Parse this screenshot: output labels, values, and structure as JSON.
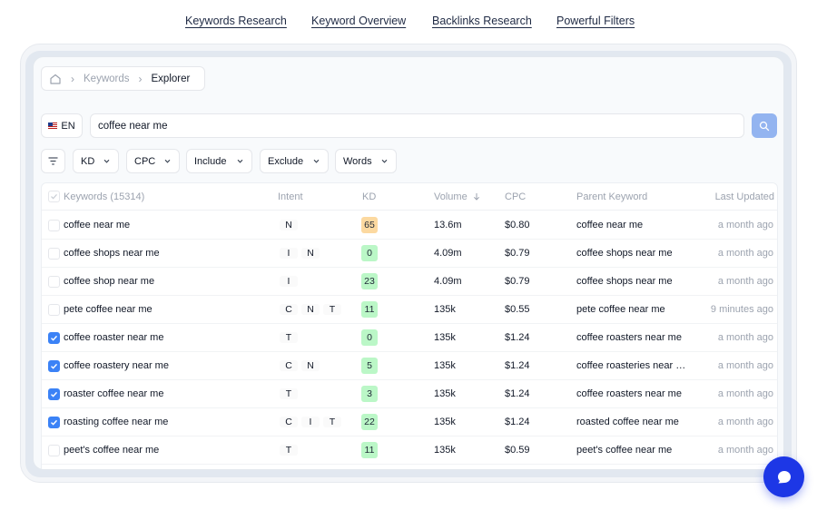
{
  "nav": {
    "links": [
      "Keywords Research",
      "Keyword Overview",
      "Backlinks Research",
      "Powerful Filters"
    ]
  },
  "breadcrumb": {
    "home_icon": "home-icon",
    "items": [
      "Keywords",
      "Explorer"
    ]
  },
  "search": {
    "language": "EN",
    "query": "coffee near me",
    "button_icon": "search-icon"
  },
  "filters": {
    "filter_icon": "filter-lines-icon",
    "buttons": [
      "KD",
      "CPC",
      "Include",
      "Exclude",
      "Words"
    ]
  },
  "table": {
    "columns": {
      "keywords": "Keywords (15314)",
      "intent": "Intent",
      "kd": "KD",
      "volume": "Volume",
      "volume_sort_icon": "arrow-down-icon",
      "cpc": "CPC",
      "parent": "Parent Keyword",
      "updated": "Last Updated"
    },
    "rows": [
      {
        "checked": false,
        "keyword": "coffee near me",
        "intent": [
          "N"
        ],
        "kd": "65",
        "kd_color": "#fcd9a0",
        "volume": "13.6m",
        "cpc": "$0.80",
        "parent": "coffee near me",
        "updated": "a month ago"
      },
      {
        "checked": false,
        "keyword": "coffee shops near me",
        "intent": [
          "I",
          "N"
        ],
        "kd": "0",
        "kd_color": "#bbf7c7",
        "volume": "4.09m",
        "cpc": "$0.79",
        "parent": "coffee shops near me",
        "updated": "a month ago"
      },
      {
        "checked": false,
        "keyword": "coffee shop near me",
        "intent": [
          "I"
        ],
        "kd": "23",
        "kd_color": "#bbf7c7",
        "volume": "4.09m",
        "cpc": "$0.79",
        "parent": "coffee shops near me",
        "updated": "a month ago"
      },
      {
        "checked": false,
        "keyword": "pete coffee near me",
        "intent": [
          "C",
          "N",
          "T"
        ],
        "kd": "11",
        "kd_color": "#bbf7c7",
        "volume": "135k",
        "cpc": "$0.55",
        "parent": "pete coffee near me",
        "updated": "9 minutes ago"
      },
      {
        "checked": true,
        "keyword": "coffee roaster near me",
        "intent": [
          "T"
        ],
        "kd": "0",
        "kd_color": "#bbf7c7",
        "volume": "135k",
        "cpc": "$1.24",
        "parent": "coffee roasters near me",
        "updated": "a month ago"
      },
      {
        "checked": true,
        "keyword": "coffee roastery near me",
        "intent": [
          "C",
          "N"
        ],
        "kd": "5",
        "kd_color": "#bbf7c7",
        "volume": "135k",
        "cpc": "$1.24",
        "parent": "coffee roasteries near …",
        "updated": "a month ago"
      },
      {
        "checked": true,
        "keyword": "roaster coffee near me",
        "intent": [
          "T"
        ],
        "kd": "3",
        "kd_color": "#bbf7c7",
        "volume": "135k",
        "cpc": "$1.24",
        "parent": "coffee roasters near me",
        "updated": "a month ago"
      },
      {
        "checked": true,
        "keyword": "roasting coffee near me",
        "intent": [
          "C",
          "I",
          "T"
        ],
        "kd": "22",
        "kd_color": "#bbf7c7",
        "volume": "135k",
        "cpc": "$1.24",
        "parent": "roasted coffee near me",
        "updated": "a month ago"
      },
      {
        "checked": false,
        "keyword": "peet's coffee near me",
        "intent": [
          "T"
        ],
        "kd": "11",
        "kd_color": "#bbf7c7",
        "volume": "135k",
        "cpc": "$0.59",
        "parent": "peet's coffee near me",
        "updated": "a month ago"
      }
    ]
  },
  "chat": {
    "icon": "chat-bubble-icon"
  }
}
